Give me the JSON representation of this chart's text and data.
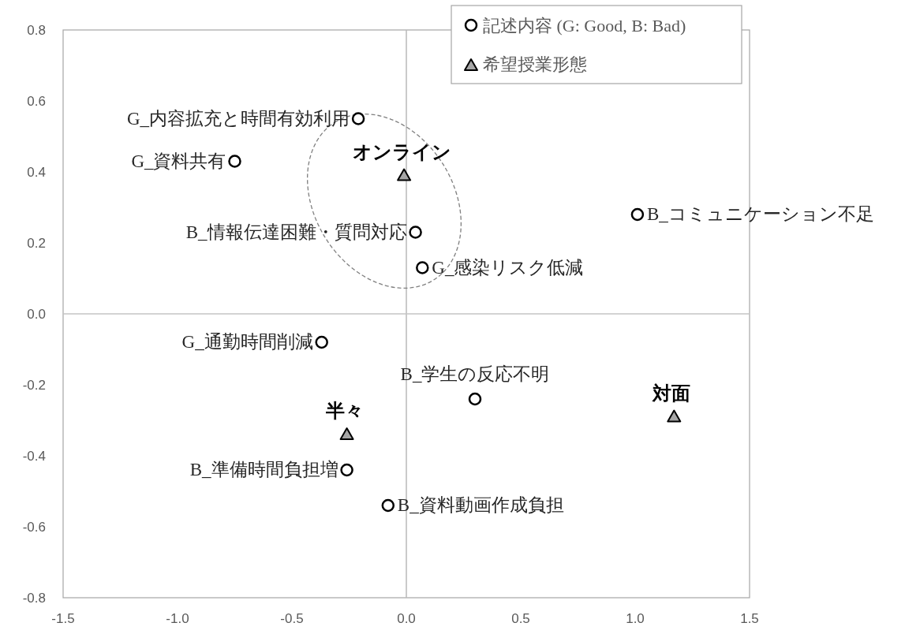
{
  "chart_data": {
    "type": "scatter",
    "xlim": [
      -1.5,
      1.5
    ],
    "ylim": [
      -0.8,
      0.8
    ],
    "xticks": [
      {
        "value": -1.5,
        "label": "-1.5"
      },
      {
        "value": -1,
        "label": "-1.0"
      },
      {
        "value": -0.5,
        "label": "-0.5"
      },
      {
        "value": 0,
        "label": "0.0"
      },
      {
        "value": 0.5,
        "label": "0.5"
      },
      {
        "value": 1,
        "label": "1.0"
      },
      {
        "value": 1.5,
        "label": "1.5"
      }
    ],
    "yticks": [
      {
        "value": -0.8,
        "label": "-0.8"
      },
      {
        "value": -0.6,
        "label": "-0.6"
      },
      {
        "value": -0.4,
        "label": "-0.4"
      },
      {
        "value": -0.2,
        "label": "-0.2"
      },
      {
        "value": 0,
        "label": "0.0"
      },
      {
        "value": 0.2,
        "label": "0.2"
      },
      {
        "value": 0.4,
        "label": "0.4"
      },
      {
        "value": 0.6,
        "label": "0.6"
      },
      {
        "value": 0.8,
        "label": "0.8"
      }
    ],
    "ref_lines": [
      {
        "axis": "x",
        "value": 0,
        "color": "#b8b8b8"
      },
      {
        "axis": "y",
        "value": 0,
        "color": "#c4c4c4"
      }
    ],
    "legend": "top right",
    "series": [
      {
        "name": "記述内容 (G: Good, B: Bad)",
        "color": "#000000",
        "marker": "circle",
        "x": [
          -0.21,
          -0.75,
          0.04,
          0.07,
          1.01,
          -0.37,
          0.3,
          -0.26,
          -0.08
        ],
        "values": [
          0.55,
          0.43,
          0.23,
          0.13,
          0.28,
          -0.08,
          -0.24,
          -0.44,
          -0.54
        ]
      },
      {
        "name": "希望授業形態",
        "color": "#a6a6a6",
        "marker": "triangle",
        "x": [
          -0.01,
          -0.26,
          1.17
        ],
        "values": [
          0.39,
          -0.34,
          -0.29
        ]
      }
    ],
    "annotations": [
      {
        "text": "G_内容拡充と時間有効利用",
        "x": -0.21,
        "y": 0.55
      },
      {
        "text": "G_資料共有",
        "x": -0.75,
        "y": 0.43
      },
      {
        "text": "B_情報伝達困難・質問対応",
        "x": 0.04,
        "y": 0.23
      },
      {
        "text": "G_感染リスク低減",
        "x": 0.07,
        "y": 0.13
      },
      {
        "text": "B_コミュニケーション不足",
        "x": 1.01,
        "y": 0.28
      },
      {
        "text": "G_通勤時間削減",
        "x": -0.37,
        "y": -0.08
      },
      {
        "text": "B_学生の反応不明",
        "x": 0.3,
        "y": -0.24
      },
      {
        "text": "B_準備時間負担増",
        "x": -0.26,
        "y": -0.44
      },
      {
        "text": "B_資料動画作成負担",
        "x": -0.08,
        "y": -0.54
      },
      {
        "text": "オンライン",
        "x": -0.01,
        "y": 0.39
      },
      {
        "text": "半々",
        "x": -0.26,
        "y": -0.34
      },
      {
        "text": "対面",
        "x": 1.17,
        "y": -0.29
      }
    ]
  }
}
